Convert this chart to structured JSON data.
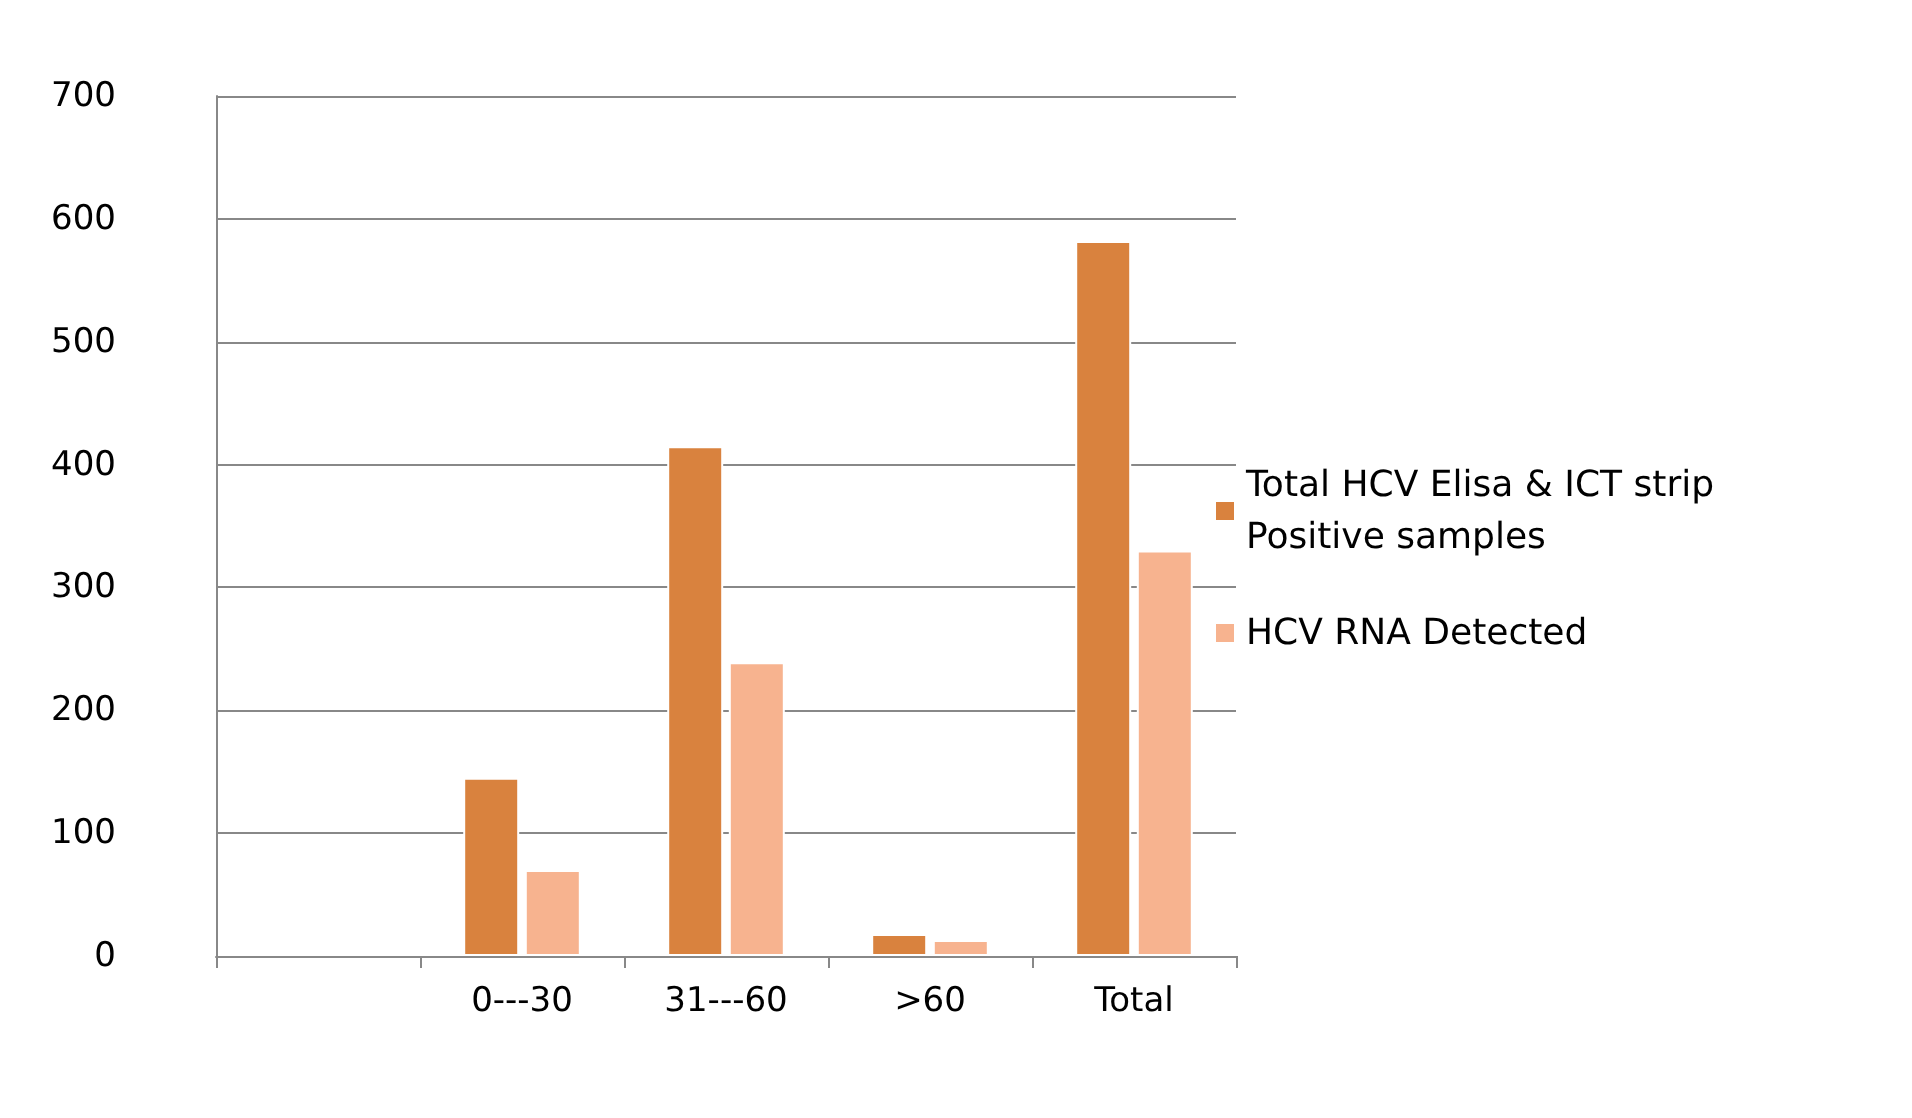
{
  "chart_data": {
    "type": "bar",
    "categories": [
      null,
      "0---30",
      "31---60",
      ">60",
      "Total"
    ],
    "series": [
      {
        "name": "Total HCV Elisa & ICT strip Positive samples",
        "color": "#d9823e",
        "values": [
          null,
          145,
          415,
          18,
          582
        ]
      },
      {
        "name": "HCV RNA Detected",
        "color": "#f7b38f",
        "values": [
          null,
          70,
          239,
          13,
          330
        ]
      }
    ],
    "ylim": [
      0,
      700
    ],
    "yticks": [
      0,
      100,
      200,
      300,
      400,
      500,
      600,
      700
    ],
    "grid": "y",
    "legend": "right"
  }
}
